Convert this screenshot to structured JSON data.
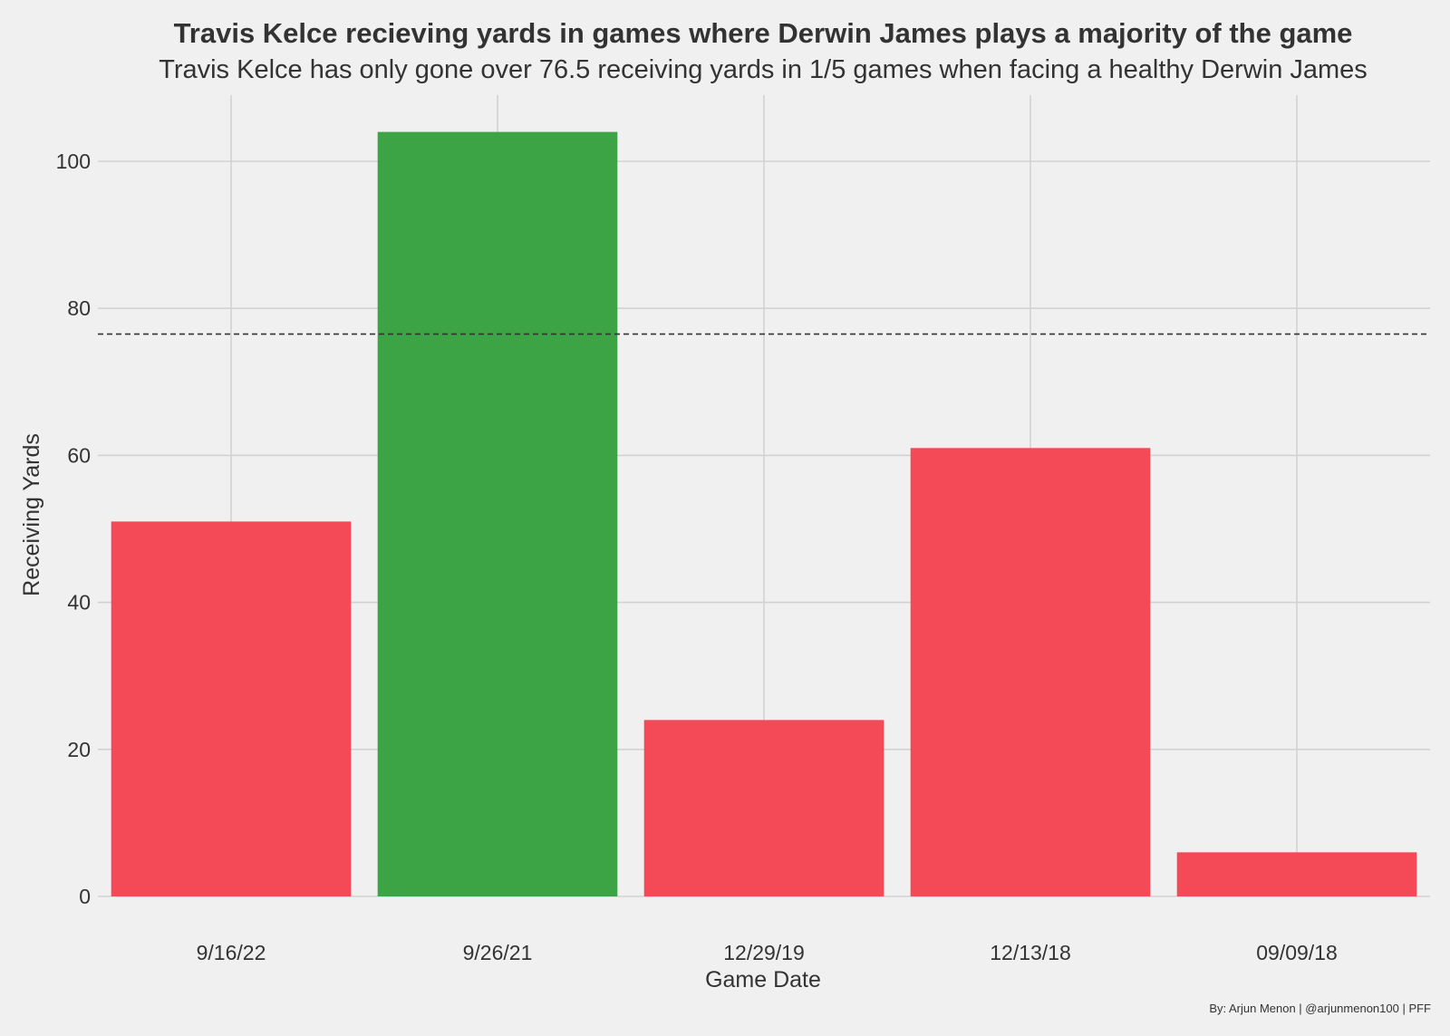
{
  "chart_data": {
    "type": "bar",
    "title": "Travis Kelce recieving yards in games where Derwin James plays a majority of the game",
    "subtitle": "Travis Kelce has only gone over 76.5 receiving yards in 1/5 games when facing a healthy Derwin James",
    "xlabel": "Game Date",
    "ylabel": "Receiving Yards",
    "categories": [
      "9/16/22",
      "9/26/21",
      "12/29/19",
      "12/13/18",
      "09/09/18"
    ],
    "values": [
      51,
      104,
      24,
      61,
      6
    ],
    "bar_colors": [
      "#f44a58",
      "#3ca445",
      "#f44a58",
      "#f44a58",
      "#f44a58"
    ],
    "ylim": [
      0,
      109
    ],
    "yticks": [
      0,
      20,
      40,
      60,
      80,
      100
    ],
    "reference_line": {
      "value": 76.5,
      "style": "dashed",
      "color": "#333333"
    },
    "grid": true,
    "legend": "none",
    "caption": "By: Arjun Menon | @arjunmenon100 | PFF"
  }
}
